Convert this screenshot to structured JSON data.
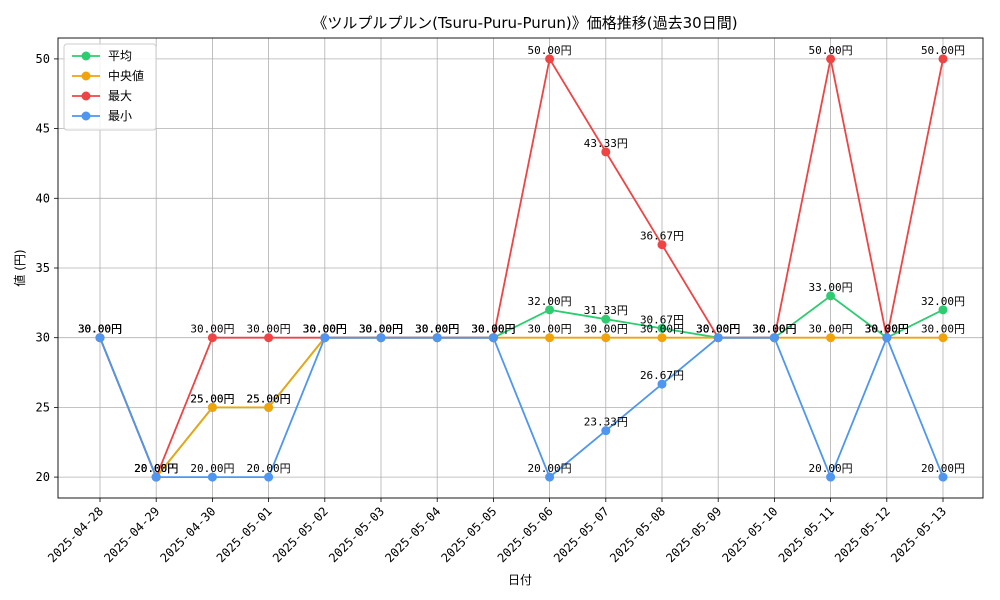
{
  "chart_data": {
    "type": "line",
    "title": "《ツルプルプルン(Tsuru-Puru-Purun)》価格推移(過去30日間)",
    "xlabel": "日付",
    "ylabel": "値 (円)",
    "ylim": [
      18.5,
      51.5
    ],
    "yticks": [
      "20",
      "25",
      "30",
      "35",
      "40",
      "45",
      "50"
    ],
    "grid": true,
    "legend_position": "top-left",
    "label_suffix": "円",
    "categories": [
      "2025-04-28",
      "2025-04-29",
      "2025-04-30",
      "2025-05-01",
      "2025-05-02",
      "2025-05-03",
      "2025-05-04",
      "2025-05-05",
      "2025-05-06",
      "2025-05-07",
      "2025-05-08",
      "2025-05-09",
      "2025-05-10",
      "2025-05-11",
      "2025-05-12",
      "2025-05-13"
    ],
    "series": [
      {
        "name": "平均",
        "color": "#2ecc71",
        "values": [
          30,
          20,
          25,
          25,
          30,
          30,
          30,
          30,
          32,
          31.33,
          30.67,
          30,
          30,
          33,
          30,
          32
        ]
      },
      {
        "name": "中央値",
        "color": "#f0a30a",
        "values": [
          30,
          20,
          25,
          25,
          30,
          30,
          30,
          30,
          30,
          30,
          30,
          30,
          30,
          30,
          30,
          30
        ]
      },
      {
        "name": "最大",
        "color": "#ef4444",
        "values": [
          30,
          20,
          30,
          30,
          30,
          30,
          30,
          30,
          50,
          43.33,
          36.67,
          30,
          30,
          50,
          30,
          50
        ]
      },
      {
        "name": "最小",
        "color": "#4e96f0",
        "values": [
          30,
          20,
          20,
          20,
          30,
          30,
          30,
          30,
          20,
          23.33,
          26.67,
          30,
          30,
          20,
          30,
          20
        ]
      }
    ]
  }
}
